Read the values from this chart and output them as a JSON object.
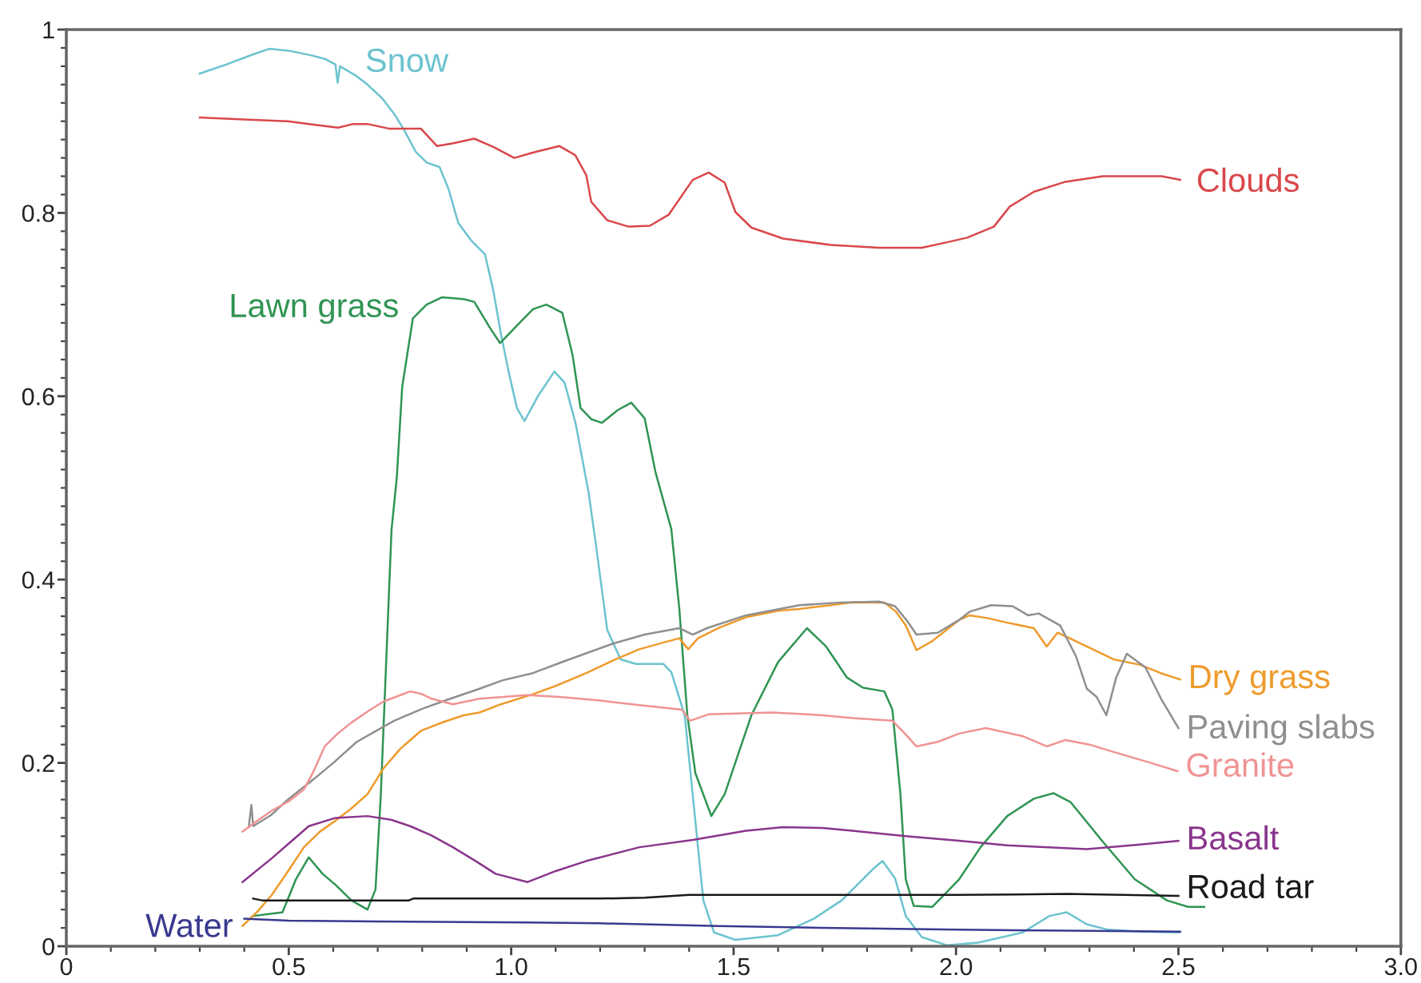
{
  "chart_data": {
    "type": "line",
    "xlim": [
      0,
      3
    ],
    "ylim": [
      0,
      1
    ],
    "xticks": [
      0,
      {
        "value": 0.1,
        "label": null
      },
      {
        "value": 0.2,
        "label": null
      },
      {
        "value": 0.3,
        "label": null
      },
      {
        "value": 0.4,
        "label": null
      },
      0.5,
      {
        "value": 0.6,
        "label": null
      },
      {
        "value": 0.7,
        "label": null
      },
      {
        "value": 0.8,
        "label": null
      },
      {
        "value": 0.9,
        "label": null
      },
      {
        "value": 1,
        "label": "1.0"
      },
      {
        "value": 1.1,
        "label": null
      },
      {
        "value": 1.2,
        "label": null
      },
      {
        "value": 1.3,
        "label": null
      },
      {
        "value": 1.4,
        "label": null
      },
      1.5,
      {
        "value": 1.6,
        "label": null
      },
      {
        "value": 1.7,
        "label": null
      },
      {
        "value": 1.8,
        "label": null
      },
      {
        "value": 1.9,
        "label": null
      },
      {
        "value": 2,
        "label": "2.0"
      },
      {
        "value": 2.1,
        "label": null
      },
      {
        "value": 2.2,
        "label": null
      },
      {
        "value": 2.3,
        "label": null
      },
      {
        "value": 2.4,
        "label": null
      },
      2.5,
      {
        "value": 2.6,
        "label": null
      },
      {
        "value": 2.7,
        "label": null
      },
      {
        "value": 2.8,
        "label": null
      },
      {
        "value": 2.9,
        "label": null
      },
      {
        "value": 3,
        "label": "3.0"
      }
    ],
    "yticks": [
      0,
      {
        "value": 0.02,
        "label": null
      },
      {
        "value": 0.04,
        "label": null
      },
      {
        "value": 0.06,
        "label": null
      },
      {
        "value": 0.08,
        "label": null
      },
      {
        "value": 0.1,
        "label": null
      },
      {
        "value": 0.12,
        "label": null
      },
      {
        "value": 0.14,
        "label": null
      },
      {
        "value": 0.16,
        "label": null
      },
      {
        "value": 0.18,
        "label": null
      },
      0.2,
      {
        "value": 0.22,
        "label": null
      },
      {
        "value": 0.24,
        "label": null
      },
      {
        "value": 0.26,
        "label": null
      },
      {
        "value": 0.28,
        "label": null
      },
      {
        "value": 0.3,
        "label": null
      },
      {
        "value": 0.32,
        "label": null
      },
      {
        "value": 0.34,
        "label": null
      },
      {
        "value": 0.36,
        "label": null
      },
      {
        "value": 0.38,
        "label": null
      },
      0.4,
      {
        "value": 0.42,
        "label": null
      },
      {
        "value": 0.44,
        "label": null
      },
      {
        "value": 0.46,
        "label": null
      },
      {
        "value": 0.48,
        "label": null
      },
      {
        "value": 0.5,
        "label": null
      },
      {
        "value": 0.52,
        "label": null
      },
      {
        "value": 0.54,
        "label": null
      },
      {
        "value": 0.56,
        "label": null
      },
      {
        "value": 0.58,
        "label": null
      },
      0.6,
      {
        "value": 0.62,
        "label": null
      },
      {
        "value": 0.64,
        "label": null
      },
      {
        "value": 0.66,
        "label": null
      },
      {
        "value": 0.68,
        "label": null
      },
      {
        "value": 0.7,
        "label": null
      },
      {
        "value": 0.72,
        "label": null
      },
      {
        "value": 0.74,
        "label": null
      },
      {
        "value": 0.76,
        "label": null
      },
      {
        "value": 0.78,
        "label": null
      },
      0.8,
      {
        "value": 0.82,
        "label": null
      },
      {
        "value": 0.84,
        "label": null
      },
      {
        "value": 0.86,
        "label": null
      },
      {
        "value": 0.88,
        "label": null
      },
      {
        "value": 0.9,
        "label": null
      },
      {
        "value": 0.92,
        "label": null
      },
      {
        "value": 0.94,
        "label": null
      },
      {
        "value": 0.96,
        "label": null
      },
      {
        "value": 0.98,
        "label": null
      },
      1
    ],
    "series": [
      {
        "name": "Snow",
        "color": "#6cc3cf",
        "x": [
          0.3,
          0.36,
          0.42,
          0.456,
          0.5,
          0.55,
          0.581,
          0.605,
          0.61,
          0.615,
          0.65,
          0.677,
          0.71,
          0.737,
          0.76,
          0.785,
          0.81,
          0.839,
          0.86,
          0.881,
          0.91,
          0.941,
          0.96,
          0.977,
          0.995,
          1.013,
          1.03,
          1.06,
          1.097,
          1.12,
          1.145,
          1.174,
          1.19,
          1.216,
          1.246,
          1.28,
          1.342,
          1.36,
          1.39,
          1.408,
          1.432,
          1.456,
          1.504,
          1.6,
          1.68,
          1.743,
          1.815,
          1.835,
          1.863,
          1.887,
          1.923,
          1.98,
          2.05,
          2.15,
          2.21,
          2.249,
          2.294,
          2.342,
          2.42,
          2.5
        ],
        "values": [
          0.952,
          0.962,
          0.973,
          0.979,
          0.977,
          0.972,
          0.968,
          0.962,
          0.942,
          0.96,
          0.95,
          0.94,
          0.925,
          0.908,
          0.89,
          0.867,
          0.855,
          0.85,
          0.825,
          0.789,
          0.77,
          0.755,
          0.715,
          0.668,
          0.625,
          0.587,
          0.573,
          0.6,
          0.627,
          0.615,
          0.57,
          0.495,
          0.44,
          0.345,
          0.313,
          0.308,
          0.308,
          0.299,
          0.252,
          0.166,
          0.05,
          0.015,
          0.007,
          0.012,
          0.03,
          0.05,
          0.085,
          0.093,
          0.074,
          0.033,
          0.01,
          0.001,
          0.004,
          0.015,
          0.033,
          0.037,
          0.024,
          0.018,
          0.016,
          0.015
        ]
      },
      {
        "name": "Clouds",
        "color": "#d9474b",
        "x": [
          0.3,
          0.4,
          0.498,
          0.56,
          0.611,
          0.645,
          0.677,
          0.725,
          0.797,
          0.833,
          0.87,
          0.917,
          0.96,
          1.007,
          1.05,
          1.108,
          1.144,
          1.169,
          1.18,
          1.216,
          1.264,
          1.312,
          1.354,
          1.408,
          1.444,
          1.48,
          1.504,
          1.54,
          1.611,
          1.719,
          1.827,
          1.923,
          1.98,
          2.025,
          2.085,
          2.121,
          2.175,
          2.246,
          2.33,
          2.462,
          2.504
        ],
        "values": [
          0.904,
          0.902,
          0.9,
          0.896,
          0.893,
          0.897,
          0.897,
          0.892,
          0.892,
          0.873,
          0.876,
          0.881,
          0.872,
          0.86,
          0.866,
          0.873,
          0.863,
          0.841,
          0.812,
          0.792,
          0.785,
          0.786,
          0.798,
          0.836,
          0.844,
          0.833,
          0.801,
          0.784,
          0.772,
          0.765,
          0.762,
          0.762,
          0.768,
          0.773,
          0.785,
          0.807,
          0.823,
          0.834,
          0.84,
          0.84,
          0.836
        ]
      },
      {
        "name": "Lawn grass",
        "color": "#2f9453",
        "x": [
          0.42,
          0.486,
          0.516,
          0.545,
          0.576,
          0.605,
          0.641,
          0.677,
          0.695,
          0.707,
          0.719,
          0.731,
          0.743,
          0.755,
          0.779,
          0.81,
          0.845,
          0.893,
          0.917,
          0.953,
          0.975,
          1.013,
          1.049,
          1.079,
          1.115,
          1.138,
          1.156,
          1.18,
          1.204,
          1.24,
          1.27,
          1.3,
          1.324,
          1.36,
          1.378,
          1.396,
          1.414,
          1.45,
          1.48,
          1.54,
          1.6,
          1.665,
          1.708,
          1.755,
          1.791,
          1.839,
          1.857,
          1.875,
          1.887,
          1.905,
          1.947,
          2.007,
          2.055,
          2.115,
          2.175,
          2.219,
          2.258,
          2.33,
          2.402,
          2.474,
          2.522,
          2.558
        ],
        "values": [
          0.033,
          0.037,
          0.073,
          0.097,
          0.079,
          0.067,
          0.05,
          0.04,
          0.062,
          0.166,
          0.31,
          0.454,
          0.512,
          0.61,
          0.685,
          0.7,
          0.708,
          0.706,
          0.703,
          0.674,
          0.658,
          0.677,
          0.695,
          0.7,
          0.691,
          0.645,
          0.587,
          0.575,
          0.571,
          0.585,
          0.593,
          0.576,
          0.518,
          0.455,
          0.368,
          0.252,
          0.189,
          0.142,
          0.166,
          0.252,
          0.31,
          0.347,
          0.327,
          0.293,
          0.282,
          0.278,
          0.258,
          0.166,
          0.073,
          0.044,
          0.043,
          0.073,
          0.108,
          0.142,
          0.161,
          0.167,
          0.157,
          0.114,
          0.073,
          0.05,
          0.043,
          0.043
        ]
      },
      {
        "name": "Dry grass",
        "color": "#ee9b2c",
        "x": [
          0.396,
          0.43,
          0.462,
          0.5,
          0.534,
          0.57,
          0.605,
          0.64,
          0.677,
          0.713,
          0.75,
          0.797,
          0.85,
          0.893,
          0.929,
          0.977,
          1.049,
          1.1,
          1.169,
          1.23,
          1.288,
          1.34,
          1.378,
          1.398,
          1.42,
          1.47,
          1.528,
          1.6,
          1.648,
          1.7,
          1.767,
          1.839,
          1.865,
          1.887,
          1.911,
          1.947,
          2.007,
          2.031,
          2.07,
          2.115,
          2.175,
          2.204,
          2.228,
          2.26,
          2.294,
          2.354,
          2.414,
          2.46,
          2.504
        ],
        "values": [
          0.022,
          0.038,
          0.056,
          0.083,
          0.108,
          0.125,
          0.137,
          0.15,
          0.166,
          0.194,
          0.215,
          0.235,
          0.245,
          0.252,
          0.255,
          0.264,
          0.275,
          0.284,
          0.298,
          0.312,
          0.324,
          0.331,
          0.336,
          0.324,
          0.336,
          0.348,
          0.359,
          0.366,
          0.368,
          0.371,
          0.375,
          0.375,
          0.365,
          0.35,
          0.323,
          0.333,
          0.356,
          0.361,
          0.358,
          0.353,
          0.347,
          0.327,
          0.342,
          0.335,
          0.327,
          0.313,
          0.307,
          0.298,
          0.291
        ]
      },
      {
        "name": "Paving slabs",
        "color": "#8f8f8f",
        "x": [
          0.41,
          0.416,
          0.42,
          0.46,
          0.498,
          0.558,
          0.6,
          0.653,
          0.7,
          0.737,
          0.8,
          0.857,
          0.929,
          0.98,
          1.049,
          1.12,
          1.228,
          1.3,
          1.378,
          1.408,
          1.44,
          1.528,
          1.648,
          1.74,
          1.827,
          1.863,
          1.89,
          1.911,
          1.959,
          2.007,
          2.031,
          2.079,
          2.127,
          2.162,
          2.186,
          2.234,
          2.27,
          2.294,
          2.316,
          2.338,
          2.36,
          2.384,
          2.426,
          2.462,
          2.5
        ],
        "values": [
          0.13,
          0.154,
          0.131,
          0.143,
          0.16,
          0.183,
          0.2,
          0.223,
          0.236,
          0.246,
          0.259,
          0.269,
          0.281,
          0.29,
          0.298,
          0.311,
          0.33,
          0.34,
          0.347,
          0.34,
          0.347,
          0.361,
          0.372,
          0.375,
          0.376,
          0.371,
          0.355,
          0.34,
          0.342,
          0.356,
          0.365,
          0.372,
          0.371,
          0.361,
          0.363,
          0.35,
          0.316,
          0.281,
          0.272,
          0.252,
          0.293,
          0.319,
          0.304,
          0.269,
          0.238
        ]
      },
      {
        "name": "Granite",
        "color": "#f09393",
        "x": [
          0.396,
          0.43,
          0.462,
          0.5,
          0.534,
          0.555,
          0.581,
          0.61,
          0.641,
          0.68,
          0.713,
          0.773,
          0.8,
          0.821,
          0.869,
          0.929,
          1.037,
          1.108,
          1.2,
          1.288,
          1.384,
          1.402,
          1.444,
          1.587,
          1.7,
          1.767,
          1.857,
          1.885,
          1.911,
          1.959,
          2.007,
          2.067,
          2.151,
          2.204,
          2.246,
          2.3,
          2.354,
          2.438,
          2.498
        ],
        "values": [
          0.125,
          0.137,
          0.148,
          0.158,
          0.171,
          0.19,
          0.218,
          0.232,
          0.244,
          0.257,
          0.267,
          0.278,
          0.275,
          0.27,
          0.264,
          0.27,
          0.274,
          0.272,
          0.268,
          0.263,
          0.258,
          0.246,
          0.253,
          0.255,
          0.252,
          0.249,
          0.246,
          0.232,
          0.218,
          0.223,
          0.232,
          0.238,
          0.229,
          0.218,
          0.225,
          0.22,
          0.212,
          0.2,
          0.191
        ]
      },
      {
        "name": "Basalt",
        "color": "#8a358c",
        "x": [
          0.396,
          0.462,
          0.5,
          0.545,
          0.605,
          0.677,
          0.73,
          0.773,
          0.82,
          0.869,
          0.92,
          0.965,
          1.037,
          1.1,
          1.169,
          1.288,
          1.408,
          1.528,
          1.611,
          1.7,
          1.767,
          1.887,
          2.007,
          2.115,
          2.294,
          2.414,
          2.5
        ],
        "values": [
          0.07,
          0.096,
          0.112,
          0.131,
          0.14,
          0.142,
          0.138,
          0.131,
          0.121,
          0.108,
          0.093,
          0.079,
          0.07,
          0.082,
          0.093,
          0.108,
          0.116,
          0.126,
          0.13,
          0.129,
          0.126,
          0.12,
          0.115,
          0.11,
          0.106,
          0.111,
          0.115
        ]
      },
      {
        "name": "Road tar",
        "color": "#1a1a1a",
        "x": [
          0.42,
          0.44,
          0.77,
          0.78,
          1.2,
          1.3,
          1.4,
          2.0,
          2.25,
          2.5
        ],
        "values": [
          0.052,
          0.05,
          0.05,
          0.052,
          0.052,
          0.053,
          0.056,
          0.056,
          0.057,
          0.055
        ]
      },
      {
        "name": "Water",
        "color": "#3a3a90",
        "x": [
          0.4,
          0.5,
          0.7,
          1.037,
          1.2,
          1.468,
          1.7,
          2.007,
          2.25,
          2.504
        ],
        "values": [
          0.03,
          0.028,
          0.027,
          0.026,
          0.025,
          0.022,
          0.02,
          0.018,
          0.017,
          0.016
        ]
      }
    ]
  }
}
